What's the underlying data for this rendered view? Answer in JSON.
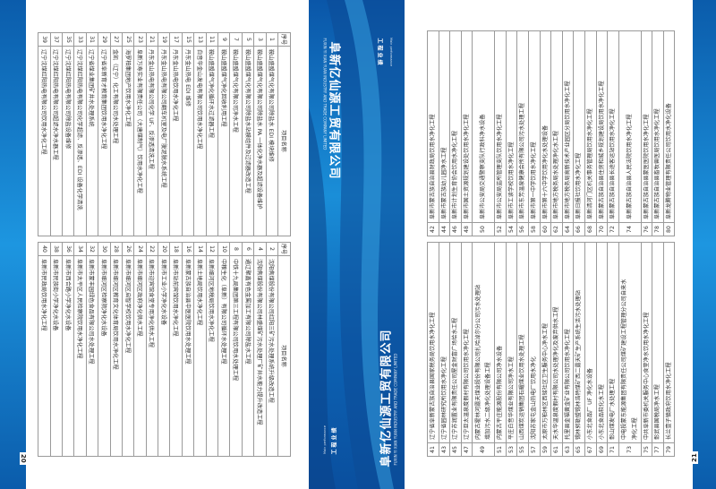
{
  "colors": {
    "brand_blue": "#0a56a8",
    "accent_blue": "#1a8ed8",
    "table_border": "#9a9a9a"
  },
  "band": {
    "company_cn": "阜新亿仙源工贸有限公司",
    "company_en": "FUXIN YI XIAN YUAN INDUSTRY AND TRADE COMPANY LIMITED",
    "section_cn": "工程业绩",
    "section_en": "Main performance"
  },
  "left_page": {
    "page_number": "20",
    "header": {
      "no": "序号",
      "name": "项目名称"
    },
    "odd_rows": [
      {
        "no": "1",
        "name": "鞍山盛盟煤气化有限公司除盐水 EDI 模块维修"
      },
      {
        "no": "3",
        "name": "鞍山盛盟煤气化有限公司除盐水 PA 一体化净水器及超滤设备维护"
      },
      {
        "no": "5",
        "name": "鞍山盛盟煤气化有限公司除盐水站膜组件及过滤器改造工程"
      },
      {
        "no": "7",
        "name": "鞍山盛盟煤气化有限公司净水工程"
      },
      {
        "no": "9",
        "name": "鞍山盛盟煤气净化回收利用工程"
      },
      {
        "no": "11",
        "name": "鞍山盛盟煤气净化循环水过滤器工程"
      },
      {
        "no": "13",
        "name": "白音华金山发电有限公司饮用水净化工程"
      },
      {
        "no": "15",
        "name": "丹东金山热电 EDI 维修"
      },
      {
        "no": "17",
        "name": "丹东金山热电饮用水净化工程"
      },
      {
        "no": "19",
        "name": "丹东金山热电有限公司翻车机室及电厂脱泥脱水系统工程"
      },
      {
        "no": "21",
        "name": "丹东金山热电有限公司化学 UF、反渗透清洗工程"
      },
      {
        "no": "23",
        "name": "阜新万寿实业有限责任公司（大唐煤制气）饮用水净化工程"
      },
      {
        "no": "25",
        "name": "海罗柏集团地产饮用水净化工程"
      },
      {
        "no": "27",
        "name": "金凯（辽宁）化工有限公司水处理工程"
      },
      {
        "no": "29",
        "name": "辽宁省阜新育才教育集团饮用水净化工程"
      },
      {
        "no": "31",
        "name": "辽宁省煤业集团矿井水处理系统"
      },
      {
        "no": "33",
        "name": "辽宁沈煤红阳热电有限公司化学超滤、反渗透、EDI 设备化学清洗"
      },
      {
        "no": "35",
        "name": "辽宁沈煤红阳热电有限公司除盐设备维修"
      },
      {
        "no": "37",
        "name": "辽宁沈煤红阳热电有限公司超滤水净水器工程"
      },
      {
        "no": "39",
        "name": "辽宁沈煤红阳热电有限公司饮用水净化工程"
      }
    ],
    "even_rows": [
      {
        "no": "2",
        "name": "沈阳焦煤股份有限公司红阳三矿污水处理系统升级改造工程"
      },
      {
        "no": "4",
        "name": "沈阳焦煤股份有限公司林盛煤矿污水处理厂矿井水能力提升改造工程"
      },
      {
        "no": "6",
        "name": "通辽聚鑫有色金属加工有限公司除盐水工程"
      },
      {
        "no": "8",
        "name": "中铁十九局集团第三工程有限公司饮用水处理工程"
      },
      {
        "no": "10",
        "name": "中粮生化（阜新）有限公司循环水处理工程"
      },
      {
        "no": "12",
        "name": "阜新细河区地税局饮用水净化工程"
      },
      {
        "no": "14",
        "name": "阜新土地局饮用水净化工程"
      },
      {
        "no": "16",
        "name": "阜新蒙古族自治县中医医院饮用水处理工程"
      },
      {
        "no": "18",
        "name": "阜新市站前宾馆饮用水净化工程"
      },
      {
        "no": "20",
        "name": "阜新市工业小学净化水设备"
      },
      {
        "no": "22",
        "name": "阜新市迎宾馆食堂专用净化供水工程"
      },
      {
        "no": "24",
        "name": "阜新市细河区政府净化供水工程"
      },
      {
        "no": "26",
        "name": "阜新市细河区启智学校饮用水净化工程"
      },
      {
        "no": "28",
        "name": "阜新市细河区教育文化体育局饮用水净化工程"
      },
      {
        "no": "30",
        "name": "阜新市细河区检察院净化水设备"
      },
      {
        "no": "32",
        "name": "阜新市蒙丰园绿色食品有限公司水处理工程"
      },
      {
        "no": "34",
        "name": "阜新市太平区人民检察院饮用水净化工程"
      },
      {
        "no": "36",
        "name": "阜新市西合路小学净化水设备"
      },
      {
        "no": "38",
        "name": "阜新市民族街小学净化水设备"
      },
      {
        "no": "40",
        "name": "阜新市民政局饮用水净化工程"
      }
    ]
  },
  "right_page": {
    "page_number": "21",
    "odd_rows": [
      {
        "no": "41",
        "name": "辽宁省阜新蒙古族自治县国家税务局饮用水净化工程"
      },
      {
        "no": "43",
        "name": "辽宁省园林研究所饮用水净化工程"
      },
      {
        "no": "45",
        "name": "辽宁苏润置业有限责任公司屋金财富广场给水工程"
      },
      {
        "no": "47",
        "name": "辽宁亚太温泉度假村有限公司饮用水净化工程"
      },
      {
        "no": "49",
        "name": "内蒙古霍林河露天煤业股份有限公司扎哈淖尔分公司污水处理站",
        "name2": "增加污水二级净化处理设备工程"
      },
      {
        "no": "51",
        "name": "内蒙古平庄能源股份有限公司净水设备"
      },
      {
        "no": "53",
        "name": "平庄白音华煤业有限公司净水工程"
      },
      {
        "no": "55",
        "name": "山西煤炭运销集团石耀煤业饮用水处理工程"
      },
      {
        "no": "57",
        "name": "沈阳苏家屯金山热电厂饮用水净化"
      },
      {
        "no": "59",
        "name": "太原市万柏林区西铭社区卫生服务中心净水工程"
      },
      {
        "no": "61",
        "name": "天水华温泉度假村有限公司水处理净化及废弃供水工程"
      },
      {
        "no": "63",
        "name": "托里县金福黄金矿业有限公司饮用水净化工程"
      },
      {
        "no": "65",
        "name": "锡林郭勒盟锡林浩特煤矿西二露天矿生产系统生活污水处理站"
      },
      {
        "no": "67",
        "name": "小东北食品厂 UF 净化水设备"
      },
      {
        "no": "69",
        "name": "小东北食品软化水工程"
      },
      {
        "no": "71",
        "name": "彰山煤发电厂水处理工程"
      },
      {
        "no": "73",
        "name": "中电投蒙东能源集团有限责任公司煤矿建设工程管理分公司自来水",
        "name2": "净化工程"
      },
      {
        "no": "75",
        "name": "中共阜新市委机关服务中心食堂净水饮用水净化工程"
      },
      {
        "no": "77",
        "name": "彰武县国税局净水工程"
      },
      {
        "no": "79",
        "name": "长兰壹子镇政府饮用水净化工程"
      }
    ],
    "even_rows": [
      {
        "no": "42",
        "name": "阜新市蒙古族自治县财政局饮用水净化工程"
      },
      {
        "no": "44",
        "name": "阜新市蒙古族幼儿园净水工程"
      },
      {
        "no": "46",
        "name": "阜新市计划生育协会饮用水净化工程"
      },
      {
        "no": "48",
        "name": "阜新市国土资源规划建设处饮用水净化工程"
      },
      {
        "no": "50",
        "name": "阜新市公安局交通警察支队行政科净水设备"
      },
      {
        "no": "52",
        "name": "阜新市公安局监所管理支队饮用水净化工程"
      },
      {
        "no": "54",
        "name": "阜新市工读学校饮用水净化工程"
      },
      {
        "no": "56",
        "name": "阜新市东芳温泉健康会所有限公司污水处理工程"
      },
      {
        "no": "58",
        "name": "阜新市第一中学饮用水净化工程"
      },
      {
        "no": "60",
        "name": "阜新市第十六中学饮用净化水处理设备"
      },
      {
        "no": "62",
        "name": "阜新市地方税务局水处理净化水工程"
      },
      {
        "no": "64",
        "name": "阜新市地方税务局高新技术产业园区分局饮用水净化工程"
      },
      {
        "no": "66",
        "name": "阜新日报社饮用水净化工程"
      },
      {
        "no": "68",
        "name": "阜新清河门区机关事务管理局饮用水净化工程"
      },
      {
        "no": "70",
        "name": "阜新蒙古族自治县住房和城乡规划建设局饮用水净化工程"
      },
      {
        "no": "72",
        "name": "阜新蒙古族自治县长途客运站饮用水净化工程"
      },
      {
        "no": "74",
        "name": "阜新蒙古族自治县人民法院饮用水净化工程"
      },
      {
        "no": "76",
        "name": "阜新蒙古族自治县蒙医医院饮用水净化工程"
      },
      {
        "no": "78",
        "name": "阜新蒙古族自治县畜牧兽医局饮用水净化工程"
      },
      {
        "no": "80",
        "name": "阜新龙腾物业管理有限责任公司饮用水净化设备"
      }
    ]
  }
}
